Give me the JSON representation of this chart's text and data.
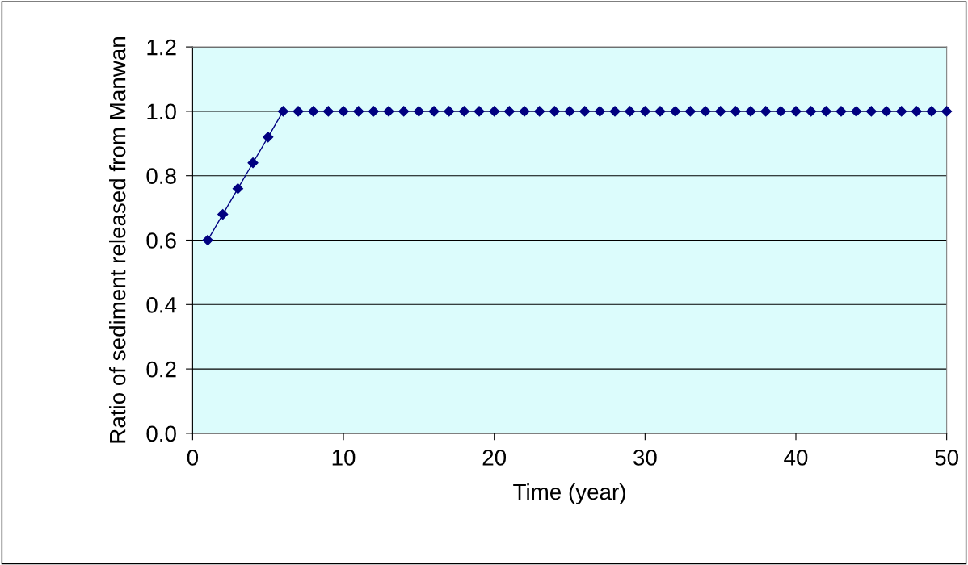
{
  "chart_data": {
    "type": "line",
    "xlabel": "Time (year)",
    "ylabel": "Ratio of sediment released from Manwan",
    "x": [
      1,
      2,
      3,
      4,
      5,
      6,
      7,
      8,
      9,
      10,
      11,
      12,
      13,
      14,
      15,
      16,
      17,
      18,
      19,
      20,
      21,
      22,
      23,
      24,
      25,
      26,
      27,
      28,
      29,
      30,
      31,
      32,
      33,
      34,
      35,
      36,
      37,
      38,
      39,
      40,
      41,
      42,
      43,
      44,
      45,
      46,
      47,
      48,
      49,
      50
    ],
    "series": [
      {
        "color": "#000080",
        "values": [
          0.6,
          0.68,
          0.76,
          0.84,
          0.92,
          1.0,
          1.0,
          1.0,
          1.0,
          1.0,
          1.0,
          1.0,
          1.0,
          1.0,
          1.0,
          1.0,
          1.0,
          1.0,
          1.0,
          1.0,
          1.0,
          1.0,
          1.0,
          1.0,
          1.0,
          1.0,
          1.0,
          1.0,
          1.0,
          1.0,
          1.0,
          1.0,
          1.0,
          1.0,
          1.0,
          1.0,
          1.0,
          1.0,
          1.0,
          1.0,
          1.0,
          1.0,
          1.0,
          1.0,
          1.0,
          1.0,
          1.0,
          1.0,
          1.0,
          1.0
        ]
      }
    ],
    "xlim": [
      0,
      50
    ],
    "xticks": [
      0,
      10,
      20,
      30,
      40,
      50
    ],
    "ylim": [
      0.0,
      1.2
    ],
    "yticks": [
      {
        "value": 0,
        "label": "0.0"
      },
      {
        "value": 0.2,
        "label": "0.2"
      },
      {
        "value": 0.4,
        "label": "0.4"
      },
      {
        "value": 0.6,
        "label": "0.6"
      },
      {
        "value": 0.8,
        "label": "0.8"
      },
      {
        "value": 1.0,
        "label": "1.0"
      },
      {
        "value": 1.2,
        "label": "1.2"
      }
    ],
    "grid": "y",
    "marker": "diamond",
    "line_style": "solid",
    "legend": false
  }
}
